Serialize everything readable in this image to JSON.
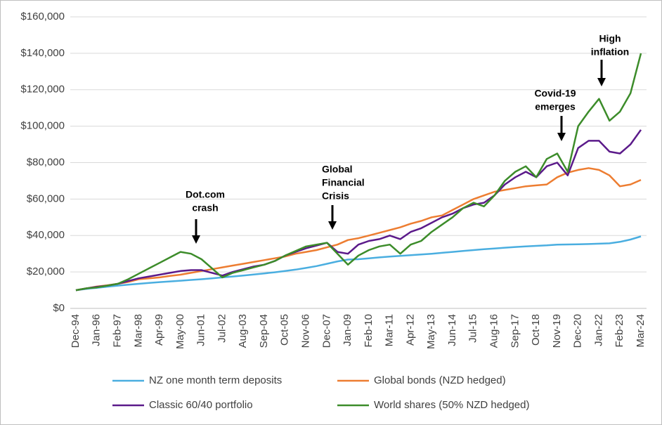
{
  "chart_data": {
    "type": "line",
    "categories": [
      "Dec-94",
      null,
      "Jan-96",
      null,
      "Feb-97",
      null,
      "Mar-98",
      null,
      "Apr-99",
      null,
      "May-00",
      null,
      "Jun-01",
      null,
      "Jul-02",
      null,
      "Aug-03",
      null,
      "Sep-04",
      null,
      "Oct-05",
      null,
      "Nov-06",
      null,
      "Dec-07",
      null,
      "Jan-09",
      null,
      "Feb-10",
      null,
      "Mar-11",
      null,
      "Apr-12",
      null,
      "May-13",
      null,
      "Jun-14",
      null,
      "Jul-15",
      null,
      "Aug-16",
      null,
      "Sep-17",
      null,
      "Oct-18",
      null,
      "Nov-19",
      null,
      "Dec-20",
      null,
      "Jan-22",
      null,
      "Feb-23",
      null,
      "Mar-24"
    ],
    "series": [
      {
        "name": "NZ one month term deposits",
        "color": "#4aaee0",
        "values": [
          10000,
          10700,
          11300,
          11900,
          12500,
          13000,
          13500,
          14000,
          14400,
          14800,
          15200,
          15600,
          16000,
          16500,
          17000,
          17500,
          18000,
          18600,
          19200,
          19800,
          20500,
          21300,
          22200,
          23200,
          24500,
          25800,
          26800,
          27000,
          27500,
          28000,
          28400,
          28800,
          29200,
          29600,
          30000,
          30500,
          31000,
          31500,
          32000,
          32500,
          32900,
          33300,
          33700,
          34000,
          34300,
          34600,
          35000,
          35100,
          35200,
          35300,
          35500,
          35700,
          36500,
          37800,
          39500
        ]
      },
      {
        "name": "Global bonds (NZD hedged)",
        "color": "#ed7d31",
        "values": [
          10000,
          11000,
          12000,
          12700,
          13500,
          14500,
          16000,
          16500,
          17000,
          17800,
          18500,
          19500,
          20500,
          21500,
          22500,
          23500,
          24500,
          25500,
          26500,
          27500,
          28500,
          30000,
          31000,
          32000,
          33500,
          35000,
          37500,
          38500,
          40000,
          41500,
          43000,
          44500,
          46500,
          48000,
          50000,
          51000,
          54000,
          57000,
          60000,
          62000,
          64000,
          65000,
          66000,
          67000,
          67500,
          68000,
          72000,
          74500,
          76000,
          77000,
          76000,
          73000,
          67000,
          68000,
          70500
        ]
      },
      {
        "name": "Classic 60/40 portfolio",
        "color": "#5b1a8a",
        "values": [
          10000,
          11000,
          11800,
          12500,
          13500,
          15000,
          16500,
          17500,
          18500,
          19500,
          20500,
          21000,
          21000,
          19500,
          18000,
          20000,
          21500,
          23000,
          24000,
          26000,
          29000,
          31000,
          33000,
          34500,
          36000,
          31000,
          30000,
          35000,
          37000,
          38000,
          40000,
          38000,
          42000,
          44000,
          47000,
          50000,
          52000,
          55000,
          57000,
          58000,
          62000,
          68000,
          72000,
          75000,
          72000,
          78000,
          80000,
          73000,
          88000,
          92000,
          92000,
          86000,
          85000,
          90000,
          98000
        ]
      },
      {
        "name": "World shares (50% NZD hedged)",
        "color": "#3c8c2a",
        "values": [
          10000,
          11000,
          11500,
          12500,
          13500,
          16000,
          19000,
          22000,
          25000,
          28000,
          31000,
          30000,
          27000,
          22000,
          17000,
          19500,
          21000,
          22500,
          24000,
          26000,
          29000,
          31500,
          34000,
          35000,
          36000,
          30000,
          24000,
          29000,
          32000,
          34000,
          35000,
          30000,
          35000,
          37000,
          42000,
          46000,
          50000,
          55000,
          58000,
          56000,
          62000,
          70000,
          75000,
          78000,
          72000,
          82000,
          85000,
          75000,
          100000,
          108000,
          115000,
          103000,
          108000,
          118000,
          140000
        ]
      }
    ],
    "ylim": [
      0,
      160000
    ],
    "yticks": [
      {
        "value": 0,
        "label": "$0"
      },
      {
        "value": 20000,
        "label": "$20,000"
      },
      {
        "value": 40000,
        "label": "$40,000"
      },
      {
        "value": 60000,
        "label": "$60,000"
      },
      {
        "value": 80000,
        "label": "$80,000"
      },
      {
        "value": 100000,
        "label": "$100,000"
      },
      {
        "value": 120000,
        "label": "$120,000"
      },
      {
        "value": 140000,
        "label": "$140,000"
      },
      {
        "value": 160000,
        "label": "$160,000"
      }
    ],
    "grid": true,
    "annotations": [
      [
        "Dot.com",
        "crash"
      ],
      [
        "Global",
        "Financial",
        "Crisis"
      ],
      [
        "Covid-19",
        "emerges"
      ],
      [
        "High",
        "inflation"
      ]
    ]
  }
}
